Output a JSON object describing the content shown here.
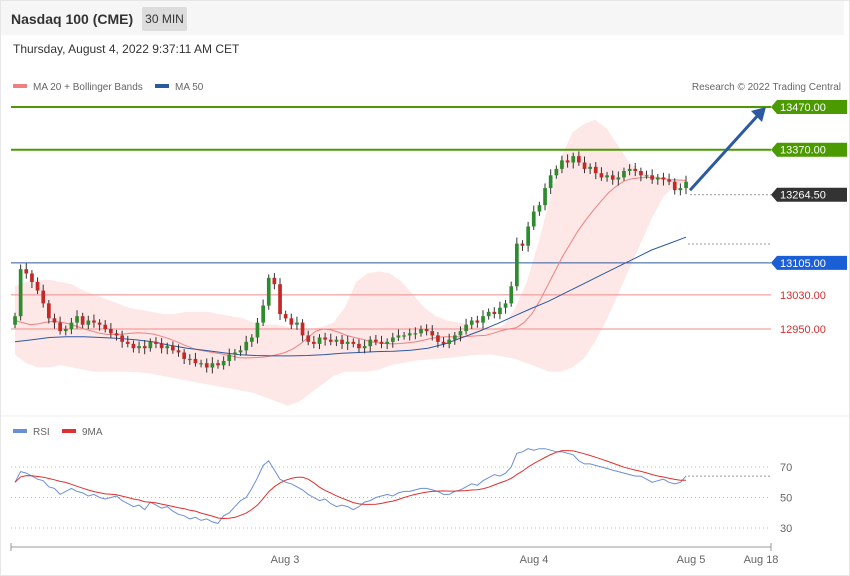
{
  "header": {
    "title": "Nasdaq 100 (CME)",
    "timeframe": "30 MIN"
  },
  "datetime": "Thursday, August 4, 2022 9:37:11 AM CET",
  "copyright": "Research © 2022 Trading Central",
  "colors": {
    "bull": "#2e8b2e",
    "bear": "#c62828",
    "bb": "#f08080",
    "ma50": "#2c5aa0",
    "target": "#4a9a00",
    "support": "#f28b8b",
    "current": "#333333",
    "arrow": "#2c5aa0",
    "rsi": "#6b8fd6",
    "rsi_ma": "#e03030"
  },
  "chart_data": [
    {
      "type": "candlestick",
      "legend": [
        {
          "name": "MA 20 + Bollinger Bands",
          "color": "#f08080"
        },
        {
          "name": "MA 50",
          "color": "#2c5aa0"
        }
      ],
      "x_ticks": [
        "Aug 3",
        "Aug 4",
        "Aug 5",
        "Aug 18"
      ],
      "ylim": [
        12850,
        13500
      ],
      "closes": [
        12980,
        13090,
        13080,
        13060,
        13040,
        13010,
        12975,
        12965,
        12945,
        12950,
        12965,
        12980,
        12960,
        12970,
        12965,
        12960,
        12950,
        12940,
        12935,
        12920,
        12915,
        12905,
        12910,
        12905,
        12920,
        12915,
        12905,
        12910,
        12900,
        12895,
        12880,
        12880,
        12870,
        12870,
        12860,
        12870,
        12865,
        12875,
        12890,
        12895,
        12900,
        12920,
        12930,
        12965,
        13005,
        13070,
        13055,
        12985,
        12975,
        12960,
        12965,
        12935,
        12920,
        12915,
        12930,
        12925,
        12920,
        12925,
        12915,
        12920,
        12915,
        12905,
        12910,
        12925,
        12920,
        12915,
        12920,
        12930,
        12935,
        12935,
        12940,
        12940,
        12950,
        12945,
        12935,
        12920,
        12915,
        12925,
        12935,
        12945,
        12960,
        12970,
        12965,
        12980,
        12990,
        12985,
        13000,
        13010,
        13050,
        13150,
        13145,
        13190,
        13225,
        13240,
        13280,
        13310,
        13325,
        13345,
        13340,
        13355,
        13340,
        13325,
        13330,
        13315,
        13305,
        13310,
        13300,
        13305,
        13320,
        13325,
        13320,
        13310,
        13310,
        13300,
        13305,
        13300,
        13295,
        13275,
        13280,
        13295
      ],
      "ma20": [
        12970,
        12965,
        12960,
        12962,
        12966,
        12968,
        12966,
        12962,
        12956,
        12950,
        12945,
        12940,
        12937,
        12937,
        12938,
        12940,
        12941,
        12940,
        12938,
        12933,
        12927,
        12920,
        12912,
        12905,
        12900,
        12897,
        12894,
        12891,
        12887,
        12883,
        12882,
        12883,
        12884,
        12886,
        12890,
        12895,
        12903,
        12915,
        12930,
        12945,
        12950,
        12948,
        12942,
        12935,
        12930,
        12926,
        12921,
        12918,
        12916,
        12915,
        12916,
        12918,
        12920,
        12924,
        12928,
        12931,
        12932,
        12932,
        12932,
        12933,
        12934,
        12935,
        12940,
        12946,
        12950,
        12953,
        12965,
        12985,
        13015,
        13050,
        13085,
        13120,
        13150,
        13180,
        13205,
        13228,
        13250,
        13270,
        13285,
        13297,
        13302,
        13304,
        13305,
        13304,
        13302,
        13300,
        13299,
        13298
      ],
      "bb_upper": [
        13050,
        13060,
        13065,
        13065,
        13060,
        13055,
        13040,
        13030,
        13020,
        13010,
        13000,
        12995,
        12990,
        12985,
        12985,
        12990,
        12990,
        12990,
        12985,
        12980,
        12975,
        12965,
        12960,
        12960,
        12955,
        12950,
        12950,
        12955,
        12965,
        13000,
        13060,
        13080,
        13085,
        13080,
        13060,
        13030,
        13000,
        12980,
        12970,
        12965,
        12960,
        12955,
        12950,
        12960,
        13000,
        13060,
        13150,
        13250,
        13350,
        13410,
        13430,
        13440,
        13420,
        13380,
        13340,
        13320,
        13310,
        13305,
        13300,
        13300
      ],
      "bb_lower": [
        12890,
        12870,
        12860,
        12860,
        12865,
        12860,
        12855,
        12850,
        12850,
        12850,
        12850,
        12848,
        12845,
        12840,
        12835,
        12830,
        12825,
        12820,
        12815,
        12810,
        12805,
        12800,
        12790,
        12780,
        12770,
        12780,
        12800,
        12820,
        12840,
        12850,
        12850,
        12850,
        12855,
        12865,
        12870,
        12875,
        12878,
        12880,
        12882,
        12885,
        12888,
        12890,
        12890,
        12885,
        12880,
        12870,
        12860,
        12850,
        12850,
        12860,
        12880,
        12920,
        12970,
        13030,
        13090,
        13150,
        13210,
        13260,
        13285,
        13295
      ],
      "ma50": [
        12920,
        12925,
        12930,
        12932,
        12932,
        12930,
        12928,
        12925,
        12920,
        12912,
        12905,
        12900,
        12895,
        12890,
        12888,
        12887,
        12887,
        12888,
        12890,
        12893,
        12895,
        12897,
        12898,
        12900,
        12905,
        12915,
        12930,
        12945,
        12962,
        12980,
        12998,
        13015,
        13035,
        13055,
        13075,
        13095,
        13115,
        13135,
        13150,
        13165
      ],
      "levels": [
        {
          "value": 13470.0,
          "label": "13470.00",
          "kind": "target"
        },
        {
          "value": 13370.0,
          "label": "13370.00",
          "kind": "target"
        },
        {
          "value": 13264.5,
          "label": "13264.50",
          "kind": "current"
        },
        {
          "value": 13105.0,
          "label": "13105.00",
          "kind": "pivot"
        },
        {
          "value": 13030.0,
          "label": "13030.00",
          "kind": "support"
        },
        {
          "value": 12950.0,
          "label": "12950.00",
          "kind": "support"
        }
      ],
      "arrow": {
        "from": 13275,
        "to": 13470
      }
    },
    {
      "type": "line",
      "legend": [
        {
          "name": "RSI",
          "color": "#6b8fd6"
        },
        {
          "name": "9MA",
          "color": "#e03030"
        }
      ],
      "y_ticks": [
        70,
        50,
        30
      ],
      "ylim": [
        20,
        85
      ],
      "rsi": [
        60,
        67,
        66,
        64,
        62,
        61,
        57,
        56,
        52,
        54,
        56,
        54,
        53,
        51,
        52,
        50,
        49,
        50,
        51,
        48,
        46,
        44,
        45,
        42,
        47,
        45,
        43,
        44,
        41,
        39,
        38,
        36,
        37,
        35,
        36,
        34,
        33,
        38,
        40,
        44,
        48,
        50,
        56,
        63,
        71,
        74,
        68,
        62,
        60,
        59,
        57,
        55,
        52,
        50,
        48,
        49,
        46,
        44,
        45,
        44,
        42,
        44,
        47,
        48,
        50,
        51,
        52,
        51,
        53,
        54,
        54,
        55,
        56,
        56,
        55,
        54,
        52,
        52,
        54,
        55,
        57,
        59,
        58,
        61,
        63,
        65,
        64,
        66,
        70,
        79,
        80,
        82,
        81,
        82,
        82,
        81,
        80,
        80,
        79,
        78,
        74,
        72,
        72,
        71,
        70,
        69,
        68,
        67,
        66,
        65,
        64,
        64,
        62,
        60,
        61,
        62,
        60,
        59,
        60,
        64
      ]
    }
  ]
}
